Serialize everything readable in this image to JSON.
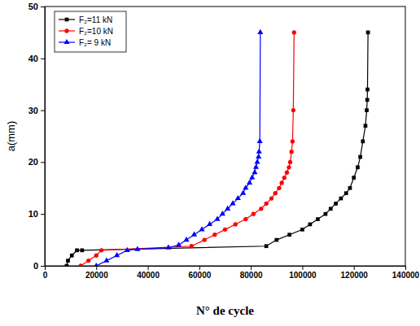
{
  "chart_data": {
    "type": "line",
    "x_label": "N° de cycle",
    "y_label": "a(mm)",
    "xlim": [
      0,
      140000
    ],
    "xticks": [
      0,
      20000,
      40000,
      60000,
      80000,
      100000,
      120000,
      140000
    ],
    "ylim": [
      0,
      50
    ],
    "yticks": [
      0,
      10,
      20,
      30,
      40,
      50
    ],
    "legend": "upper left",
    "series": [
      {
        "name": "F₂=11 kN",
        "color": "#000000",
        "marker": "square",
        "x": [
          8500,
          9000,
          10500,
          12500,
          14500,
          86000,
          90000,
          95000,
          100000,
          103000,
          106000,
          109000,
          111000,
          113000,
          115000,
          117000,
          118500,
          120000,
          121500,
          122500,
          123500,
          124500,
          125000,
          125200,
          125300,
          125500
        ],
        "values": [
          0,
          1,
          2,
          3,
          3,
          3.8,
          5,
          6,
          7,
          8,
          9,
          10,
          11,
          12,
          13,
          14,
          15,
          17,
          19,
          21,
          24,
          27,
          30,
          32,
          34,
          45
        ]
      },
      {
        "name": "F₂=10 kN",
        "color": "#ff0000",
        "marker": "circle",
        "x": [
          14000,
          17000,
          20000,
          22000,
          57000,
          62000,
          66000,
          70000,
          74000,
          78000,
          81000,
          84000,
          86000,
          88000,
          89500,
          91000,
          92000,
          93000,
          94000,
          94800,
          95300,
          95800,
          96200,
          96500,
          96800
        ],
        "values": [
          0,
          1,
          2,
          3,
          3.8,
          5,
          6,
          7,
          8,
          9,
          10,
          11,
          12,
          13,
          14,
          15,
          16,
          17,
          18,
          19,
          20,
          22,
          24,
          30,
          45
        ]
      },
      {
        "name": "F₂= 9 kN",
        "color": "#0000ff",
        "marker": "triangle",
        "x": [
          20000,
          24000,
          28000,
          32000,
          36000,
          48000,
          52000,
          55000,
          58000,
          61000,
          64000,
          67000,
          69000,
          71000,
          73000,
          75000,
          77000,
          78000,
          79500,
          80500,
          81500,
          82000,
          82500,
          83000,
          83200,
          83500,
          83700
        ],
        "values": [
          0,
          1,
          2,
          3,
          3.2,
          3.5,
          4,
          5,
          6,
          7,
          8,
          9,
          10,
          11,
          12,
          13,
          14,
          15,
          16,
          17,
          18,
          19,
          20,
          21,
          22,
          24,
          45
        ]
      }
    ]
  }
}
